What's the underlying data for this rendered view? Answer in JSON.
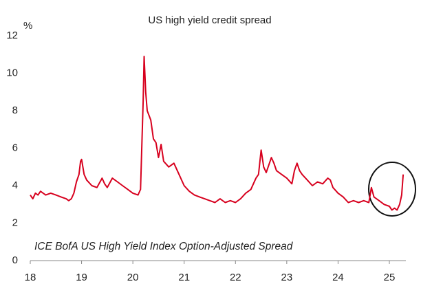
{
  "chart_data": {
    "type": "line",
    "title": "US high yield credit spread",
    "y_label": "%",
    "annotation": "ICE BofA US High Yield Index Option-Adjusted Spread",
    "xlim": [
      18,
      25.32
    ],
    "xticks": [
      18,
      19,
      20,
      21,
      22,
      23,
      24,
      25
    ],
    "ylim": [
      0,
      12
    ],
    "yticks": [
      0,
      2,
      4,
      6,
      8,
      10,
      12
    ],
    "grid": false,
    "series": [
      {
        "name": "ICE BofA US High Yield Index Option-Adjusted Spread",
        "color": "#d7001e",
        "x": [
          18.0,
          18.05,
          18.1,
          18.15,
          18.2,
          18.3,
          18.4,
          18.5,
          18.6,
          18.7,
          18.75,
          18.8,
          18.85,
          18.9,
          18.95,
          18.98,
          19.0,
          19.05,
          19.1,
          19.2,
          19.3,
          19.4,
          19.45,
          19.5,
          19.6,
          19.7,
          19.8,
          19.9,
          20.0,
          20.1,
          20.15,
          20.2,
          20.22,
          20.25,
          20.28,
          20.35,
          20.4,
          20.45,
          20.5,
          20.55,
          20.6,
          20.7,
          20.8,
          20.9,
          21.0,
          21.1,
          21.2,
          21.3,
          21.4,
          21.5,
          21.6,
          21.7,
          21.8,
          21.9,
          22.0,
          22.1,
          22.2,
          22.3,
          22.4,
          22.45,
          22.5,
          22.55,
          22.6,
          22.7,
          22.75,
          22.8,
          22.9,
          23.0,
          23.1,
          23.15,
          23.2,
          23.25,
          23.3,
          23.4,
          23.5,
          23.6,
          23.7,
          23.8,
          23.85,
          23.9,
          24.0,
          24.1,
          24.2,
          24.3,
          24.4,
          24.5,
          24.6,
          24.65,
          24.7,
          24.8,
          24.9,
          25.0,
          25.05,
          25.1,
          25.15,
          25.2,
          25.24,
          25.27
        ],
        "values": [
          3.5,
          3.3,
          3.6,
          3.5,
          3.7,
          3.5,
          3.6,
          3.5,
          3.4,
          3.3,
          3.2,
          3.3,
          3.6,
          4.2,
          4.6,
          5.3,
          5.4,
          4.6,
          4.3,
          4.0,
          3.9,
          4.4,
          4.1,
          3.9,
          4.4,
          4.2,
          4.0,
          3.8,
          3.6,
          3.5,
          3.8,
          8.5,
          10.9,
          9.0,
          8.0,
          7.5,
          6.5,
          6.3,
          5.5,
          6.2,
          5.3,
          5.0,
          5.2,
          4.6,
          4.0,
          3.7,
          3.5,
          3.4,
          3.3,
          3.2,
          3.1,
          3.3,
          3.1,
          3.2,
          3.1,
          3.3,
          3.6,
          3.8,
          4.4,
          4.6,
          5.9,
          5.0,
          4.7,
          5.5,
          5.2,
          4.8,
          4.6,
          4.4,
          4.1,
          4.8,
          5.2,
          4.8,
          4.6,
          4.3,
          4.0,
          4.2,
          4.1,
          4.4,
          4.3,
          3.9,
          3.6,
          3.4,
          3.1,
          3.2,
          3.1,
          3.2,
          3.1,
          3.9,
          3.4,
          3.2,
          3.0,
          2.9,
          2.7,
          2.8,
          2.7,
          3.0,
          3.5,
          4.6
        ]
      }
    ]
  }
}
